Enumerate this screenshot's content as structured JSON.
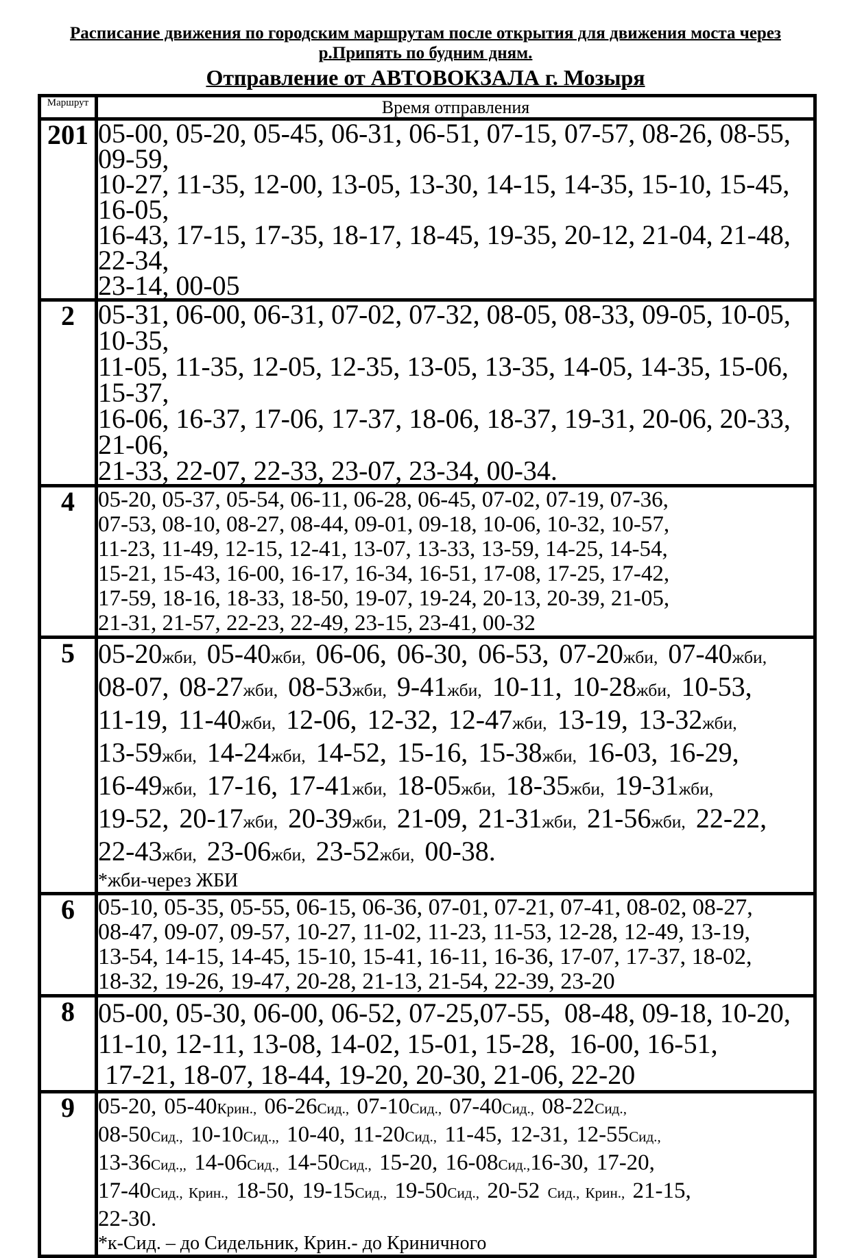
{
  "colors": {
    "background": "#ffffff",
    "text": "#000000",
    "border": "#000000"
  },
  "page": {
    "title_line1": "Расписание движения по городским маршрутам после открытия для движения моста через",
    "title_line2": "р.Припять по будним дням.",
    "subtitle": "Отправление от АВТОВОКЗАЛА г. Мозыря"
  },
  "table": {
    "col1_header": "Маршрут",
    "col2_header": "Время отправления",
    "rows": [
      {
        "route": "201",
        "cls": "r201",
        "lines": [
          "05-00, 05-20, 05-45, 06-31, 06-51, 07-15, 07-57, 08-26, 08-55, 09-59,",
          "10-27, 11-35, 12-00, 13-05, 13-30, 14-15, 14-35, 15-10, 15-45, 16-05,",
          "16-43, 17-15, 17-35, 18-17, 18-45, 19-35, 20-12, 21-04, 21-48, 22-34,",
          "23-14, 00-05"
        ],
        "footnote": null
      },
      {
        "route": "2",
        "cls": "r2",
        "lines": [
          "05-31, 06-00, 06-31, 07-02, 07-32, 08-05, 08-33, 09-05, 10-05, 10-35,",
          "11-05, 11-35, 12-05, 12-35, 13-05, 13-35, 14-05, 14-35, 15-06, 15-37,",
          "16-06, 16-37, 17-06, 17-37, 18-06, 18-37, 19-31, 20-06, 20-33, 21-06,",
          "21-33, 22-07, 22-33, 23-07, 23-34, 00-34."
        ],
        "footnote": null
      },
      {
        "route": "4",
        "cls": "r4",
        "lines": [
          "05-20, 05-37, 05-54, 06-11, 06-28, 06-45, 07-02, 07-19, 07-36,",
          "07-53, 08-10, 08-27, 08-44, 09-01, 09-18, 10-06, 10-32, 10-57,",
          "11-23, 11-49, 12-15, 12-41, 13-07, 13-33, 13-59, 14-25, 14-54,",
          "15-21, 15-43, 16-00, 16-17, 16-34, 16-51, 17-08, 17-25, 17-42,",
          "17-59, 18-16, 18-33, 18-50, 19-07, 19-24, 20-13, 20-39, 21-05,",
          "21-31, 21-57, 22-23, 22-49, 23-15, 23-41, 00-32"
        ],
        "footnote": null
      },
      {
        "route": "5",
        "cls": "r5",
        "lines": [
          "05-20~жби,~ 05-40~жби,~ 06-06, 06-30, 06-53, 07-20~жби,~ 07-40~жби,~",
          "08-07, 08-27~жби,~ 08-53~жби,~ 9-41~жби,~ 10-11, 10-28~жби,~ 10-53,",
          "11-19, 11-40~жби,~ 12-06, 12-32, 12-47~жби,~ 13-19, 13-32~жби,~",
          "13-59~жби,~ 14-24~жби,~ 14-52, 15-16, 15-38~жби,~ 16-03, 16-29,",
          "16-49~жби,~ 17-16, 17-41~жби,~ 18-05~жби,~ 18-35~жби,~ 19-31~жби,~",
          "19-52, 20-17~жби,~ 20-39~жби,~ 21-09, 21-31~жби,~ 21-56~жби,~ 22-22,",
          "22-43~жби,~ 23-06~жби,~ 23-52~жби,~ 00-38."
        ],
        "footnote": "*жби-через ЖБИ"
      },
      {
        "route": "6",
        "cls": "r6",
        "lines": [
          "05-10, 05-35, 05-55, 06-15, 06-36, 07-01, 07-21, 07-41, 08-02, 08-27,",
          "08-47, 09-07, 09-57, 10-27, 11-02, 11-23, 11-53, 12-28, 12-49, 13-19,",
          "13-54, 14-15, 14-45, 15-10, 15-41, 16-11, 16-36, 17-07, 17-37, 18-02,",
          "18-32, 19-26, 19-47, 20-28, 21-13, 21-54, 22-39, 23-20"
        ],
        "footnote": null
      },
      {
        "route": "8",
        "cls": "r8",
        "lines": [
          "05-00, 05-30, 06-00, 06-52, 07-25,07-55,  08-48, 09-18, 10-20,",
          "11-10, 12-11, 13-08, 14-02, 15-01, 15-28,  16-00, 16-51,",
          " 17-21, 18-07, 18-44, 19-20, 20-30, 21-06, 22-20"
        ],
        "footnote": null
      },
      {
        "route": "9",
        "cls": "r9",
        "lines": [
          "05-20, 05-40~Крин.,~ 06-26~Сид.,~ 07-10~Сид.,~ 07-40~Сид.,~ 08-22~Сид.,~",
          "08-50~Сид.,~ 10-10~Сид.,,~ 10-40, 11-20~Сид.,~ 11-45, 12-31, 12-55~Сид.,~",
          "13-36~Сид.,,~ 14-06~Сид.,~ 14-50~Сид.,~ 15-20, 16-08~Сид.,~16-30, 17-20,",
          "17-40~Сид., Крин.,~ 18-50, 19-15~Сид.,~ 19-50~Сид.,~ 20-52 ~Сид., Крин.,~ 21-15,",
          "22-30."
        ],
        "footnote": "*к-Сид. – до Сидельник, Крин.- до Криничного"
      }
    ]
  }
}
